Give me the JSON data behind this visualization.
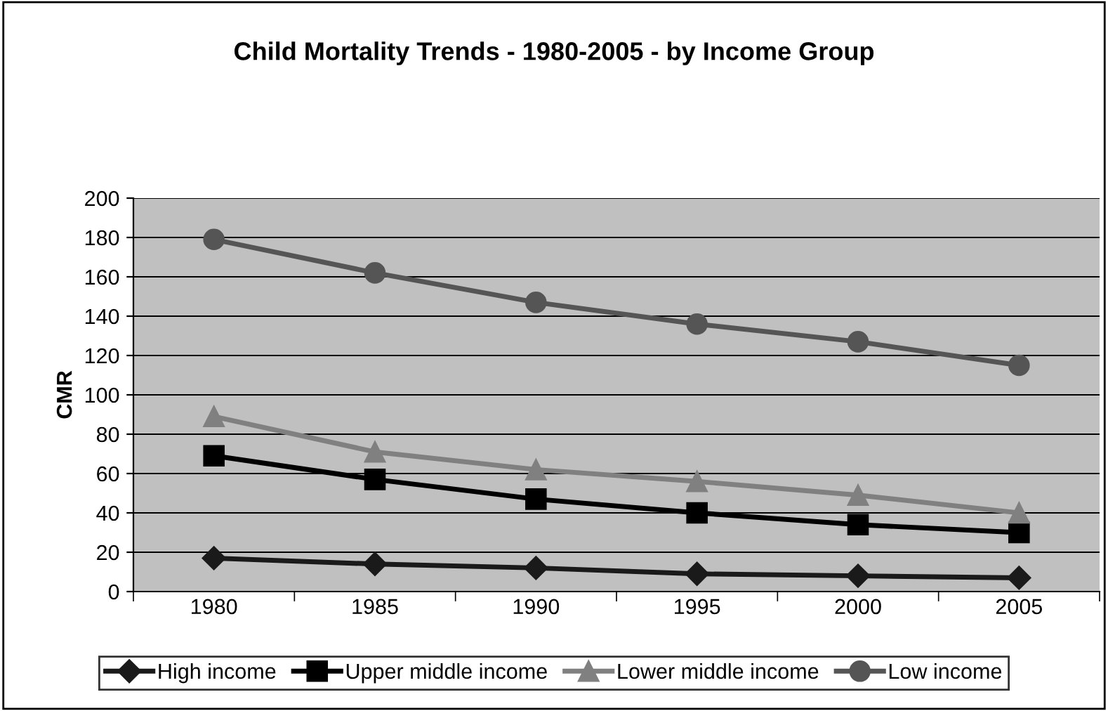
{
  "chart_data": {
    "type": "line",
    "title": "Child Mortality Trends - 1980-2005 - by Income Group",
    "ylabel": "CMR",
    "categories": [
      "1980",
      "1985",
      "1990",
      "1995",
      "2000",
      "2005"
    ],
    "series": [
      {
        "name": "High income",
        "color": "#1a1a1a",
        "marker": "diamond",
        "values": [
          17,
          14,
          12,
          9,
          8,
          7
        ]
      },
      {
        "name": "Upper middle income",
        "color": "#000000",
        "marker": "square",
        "values": [
          69,
          57,
          47,
          40,
          34,
          30
        ]
      },
      {
        "name": "Lower middle income",
        "color": "#808080",
        "marker": "triangle",
        "values": [
          89,
          71,
          62,
          56,
          49,
          40
        ]
      },
      {
        "name": "Low income",
        "color": "#555555",
        "marker": "circle",
        "values": [
          179,
          162,
          147,
          136,
          127,
          115
        ]
      }
    ],
    "ylim": [
      0,
      200
    ],
    "yticks": [
      0,
      20,
      40,
      60,
      80,
      100,
      120,
      140,
      160,
      180,
      200
    ],
    "grid": "y",
    "legend": "bottom",
    "line_style": "solid"
  }
}
